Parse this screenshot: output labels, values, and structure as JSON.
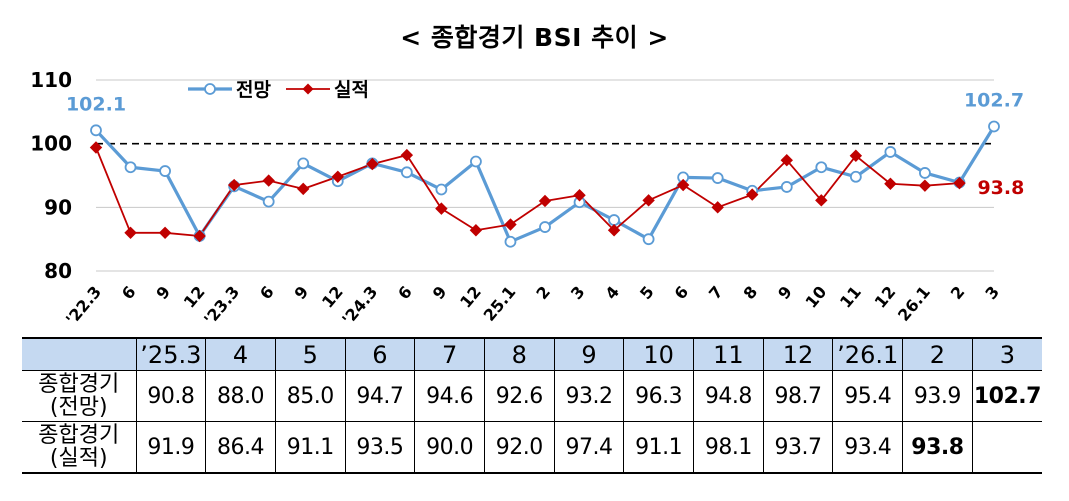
{
  "title": "< 종합경기 BSI 추이 >",
  "chart_data": {
    "type": "line",
    "title": "< 종합경기 BSI 추이 >",
    "categories": [
      "'22.3",
      "6",
      "9",
      "12",
      "'23.3",
      "6",
      "9",
      "12",
      "'24.3",
      "6",
      "9",
      "12",
      "25.1",
      "2",
      "3",
      "4",
      "5",
      "6",
      "7",
      "8",
      "9",
      "10",
      "11",
      "12",
      "26.1",
      "2",
      "3"
    ],
    "ylim": [
      80,
      110
    ],
    "yticks": [
      80,
      90,
      100,
      110
    ],
    "reference_line": 100,
    "legend_position": "top-left",
    "series": [
      {
        "name": "전망",
        "color": "#5b9bd5",
        "marker": "circle",
        "values": [
          102.1,
          96.3,
          95.7,
          85.5,
          93.3,
          90.9,
          96.9,
          94.1,
          96.9,
          95.5,
          92.8,
          97.2,
          84.6,
          86.9,
          90.8,
          88.0,
          85.0,
          94.7,
          94.6,
          92.6,
          93.2,
          96.3,
          94.8,
          98.7,
          95.4,
          93.9,
          102.7
        ]
      },
      {
        "name": "실적",
        "color": "#c00000",
        "marker": "diamond",
        "values": [
          99.4,
          86.0,
          86.0,
          85.5,
          93.5,
          94.2,
          92.9,
          94.8,
          96.8,
          98.2,
          89.8,
          86.4,
          87.3,
          91.0,
          91.9,
          86.4,
          91.1,
          93.5,
          90.0,
          92.0,
          97.4,
          91.1,
          98.1,
          93.7,
          93.4,
          93.8,
          null
        ]
      }
    ],
    "annotations": [
      {
        "text": "102.1",
        "series": 0,
        "index": 0
      },
      {
        "text": "102.7",
        "series": 0,
        "index": 26
      },
      {
        "text": "93.8",
        "series": 1,
        "index": 25
      }
    ]
  },
  "table": {
    "headers": [
      "",
      "’25.3",
      "4",
      "5",
      "6",
      "7",
      "8",
      "9",
      "10",
      "11",
      "12",
      "’26.1",
      "2",
      "3"
    ],
    "rows": [
      {
        "label_line1": "종합경기",
        "label_line2": "(전망)",
        "cells": [
          "90.8",
          "88.0",
          "85.0",
          "94.7",
          "94.6",
          "92.6",
          "93.2",
          "96.3",
          "94.8",
          "98.7",
          "95.4",
          "93.9",
          "102.7"
        ]
      },
      {
        "label_line1": "종합경기",
        "label_line2": "(실적)",
        "cells": [
          "91.9",
          "86.4",
          "91.1",
          "93.5",
          "90.0",
          "92.0",
          "97.4",
          "91.1",
          "98.1",
          "93.7",
          "93.4",
          "93.8",
          ""
        ]
      }
    ],
    "bold_cells": [
      [
        0,
        12
      ],
      [
        1,
        11
      ]
    ]
  }
}
